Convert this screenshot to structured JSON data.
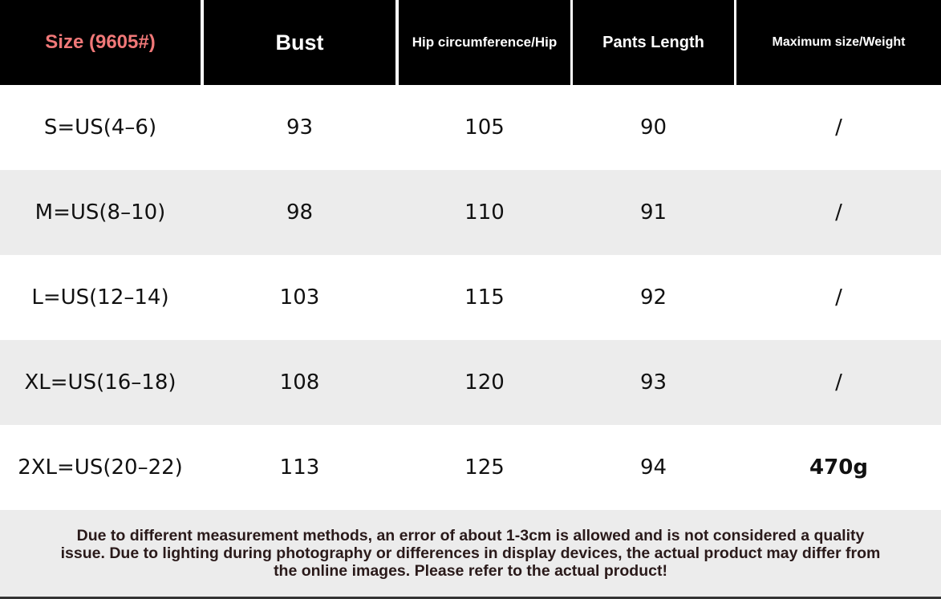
{
  "table": {
    "header": [
      "Size (9605#)",
      "Bust",
      "Hip circumference/Hip",
      "Pants Length",
      "Maximum size/Weight"
    ],
    "rows": [
      [
        "S=US(4–6)",
        93,
        105,
        90,
        "/"
      ],
      [
        "M=US(8–10)",
        98,
        110,
        91,
        "/"
      ],
      [
        "L=US(12–14)",
        103,
        115,
        92,
        "/"
      ],
      [
        "XL=US(16–18)",
        108,
        120,
        93,
        "/"
      ],
      [
        "2XL=US(20–22)",
        113,
        125,
        94,
        "470g"
      ]
    ]
  },
  "footer": {
    "lines": [
      "Due to different measurement methods, an error of about 1-3cm is allowed and is not considered a quality",
      "issue. Due to lighting during photography or differences in display devices, the actual product may differ from",
      "the online images. Please refer to the actual product!"
    ]
  }
}
